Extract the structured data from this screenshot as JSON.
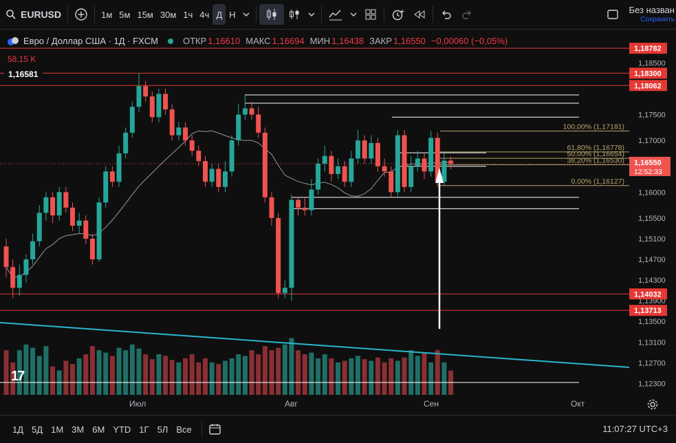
{
  "toolbar": {
    "symbol": "EURUSD",
    "intervals": [
      "1м",
      "5м",
      "15м",
      "30м",
      "1ч",
      "4ч",
      "Д",
      "Н"
    ],
    "active_interval": "Д",
    "layout_title": "Без назван",
    "layout_subtitle": "Сохранить"
  },
  "legend": {
    "title": "Евро / Доллар США · 1Д · FXCM",
    "open_label": "ОТКР",
    "open": "1,16610",
    "high_label": "МАКС",
    "high": "1,16694",
    "low_label": "МИН",
    "low": "1,16438",
    "close_label": "ЗАКР",
    "close": "1,16550",
    "change": "−0,00060 (−0,05%)",
    "volume": "58,15 K",
    "crosshair_price": "1,16581"
  },
  "colors": {
    "up": "#26a69a",
    "down": "#ef5350",
    "trend": "#29b6d0",
    "hline": "#e53935",
    "fib": "#b8a46a"
  },
  "chart_data": {
    "type": "candlestick",
    "title": "Евро / Доллар США · 1Д · FXCM",
    "x_labels": [
      "Июл",
      "Авг",
      "Сен",
      "Окт"
    ],
    "price_axis": [
      "1,18500",
      "1,17500",
      "1,17000",
      "1,16000",
      "1,15500",
      "1,15100",
      "1,14700",
      "1,14300",
      "1,13900",
      "1,13500",
      "1,13100",
      "1,12700",
      "1,12300"
    ],
    "ylim": [
      1.1208,
      1.1913
    ],
    "highlighted_levels": [
      {
        "price": 1.18782,
        "label": "1,18782"
      },
      {
        "price": 1.183,
        "label": "1,18300"
      },
      {
        "price": 1.18062,
        "label": "1,18062"
      },
      {
        "price": 1.14032,
        "label": "1,14032"
      },
      {
        "price": 1.13713,
        "label": "1,13713"
      }
    ],
    "current_price": {
      "price": 1.1655,
      "label": "1,16550",
      "countdown": "12:52:33"
    },
    "fib_levels": [
      {
        "ratio": "100,00%",
        "price": 1.17181,
        "label": "100,00% (1,17181)"
      },
      {
        "ratio": "61,80%",
        "price": 1.16778,
        "label": "61,80% (1,16778)"
      },
      {
        "ratio": "50,00%",
        "price": 1.16654,
        "label": "50,00% (1,16654)"
      },
      {
        "ratio": "38,20%",
        "price": 1.1653,
        "label": "38,20% (1,16530)"
      },
      {
        "ratio": "0,00%",
        "price": 1.16127,
        "label": "0,00% (1,16127)"
      }
    ],
    "candles": [
      [
        1.1495,
        1.1455,
        1.151,
        1.1435
      ],
      [
        1.1455,
        1.1415,
        1.147,
        1.1395
      ],
      [
        1.1415,
        1.144,
        1.146,
        1.14
      ],
      [
        1.144,
        1.147,
        1.148,
        1.1425
      ],
      [
        1.147,
        1.1505,
        1.152,
        1.146
      ],
      [
        1.1505,
        1.156,
        1.1575,
        1.1495
      ],
      [
        1.156,
        1.159,
        1.16,
        1.1545
      ],
      [
        1.159,
        1.1555,
        1.16,
        1.154
      ],
      [
        1.1555,
        1.16,
        1.161,
        1.1545
      ],
      [
        1.16,
        1.157,
        1.161,
        1.156
      ],
      [
        1.157,
        1.1535,
        1.158,
        1.1525
      ],
      [
        1.1535,
        1.1545,
        1.156,
        1.152
      ],
      [
        1.1545,
        1.151,
        1.1555,
        1.15
      ],
      [
        1.151,
        1.147,
        1.152,
        1.146
      ],
      [
        1.147,
        1.158,
        1.159,
        1.1465
      ],
      [
        1.158,
        1.164,
        1.165,
        1.157
      ],
      [
        1.164,
        1.162,
        1.165,
        1.161
      ],
      [
        1.162,
        1.1675,
        1.169,
        1.161
      ],
      [
        1.1675,
        1.1715,
        1.1725,
        1.1665
      ],
      [
        1.1715,
        1.1765,
        1.1775,
        1.1705
      ],
      [
        1.1765,
        1.1805,
        1.183,
        1.1755
      ],
      [
        1.1805,
        1.1785,
        1.1815,
        1.1775
      ],
      [
        1.1785,
        1.1745,
        1.1795,
        1.1735
      ],
      [
        1.1745,
        1.179,
        1.18,
        1.1735
      ],
      [
        1.179,
        1.176,
        1.18,
        1.175
      ],
      [
        1.176,
        1.171,
        1.177,
        1.17
      ],
      [
        1.171,
        1.1725,
        1.1735,
        1.17
      ],
      [
        1.1725,
        1.17,
        1.1735,
        1.169
      ],
      [
        1.17,
        1.168,
        1.171,
        1.167
      ],
      [
        1.168,
        1.166,
        1.169,
        1.165
      ],
      [
        1.166,
        1.162,
        1.167,
        1.161
      ],
      [
        1.162,
        1.1645,
        1.1655,
        1.161
      ],
      [
        1.1645,
        1.161,
        1.1655,
        1.16
      ],
      [
        1.161,
        1.164,
        1.166,
        1.16
      ],
      [
        1.164,
        1.17,
        1.171,
        1.163
      ],
      [
        1.17,
        1.175,
        1.177,
        1.169
      ],
      [
        1.175,
        1.1762,
        1.179,
        1.174
      ],
      [
        1.1762,
        1.175,
        1.1775,
        1.174
      ],
      [
        1.175,
        1.1715,
        1.1765,
        1.1705
      ],
      [
        1.1715,
        1.159,
        1.1725,
        1.158
      ],
      [
        1.159,
        1.155,
        1.16,
        1.1535
      ],
      [
        1.155,
        1.1405,
        1.156,
        1.1395
      ],
      [
        1.1405,
        1.1415,
        1.143,
        1.1395
      ],
      [
        1.1415,
        1.1585,
        1.1595,
        1.139
      ],
      [
        1.1585,
        1.157,
        1.159,
        1.1555
      ],
      [
        1.157,
        1.1565,
        1.159,
        1.1555
      ],
      [
        1.1565,
        1.1605,
        1.1625,
        1.1555
      ],
      [
        1.1605,
        1.1655,
        1.1665,
        1.1595
      ],
      [
        1.1655,
        1.167,
        1.169,
        1.164
      ],
      [
        1.167,
        1.1635,
        1.168,
        1.162
      ],
      [
        1.1635,
        1.165,
        1.1665,
        1.1625
      ],
      [
        1.165,
        1.162,
        1.166,
        1.161
      ],
      [
        1.162,
        1.1665,
        1.168,
        1.161
      ],
      [
        1.1665,
        1.17,
        1.172,
        1.1655
      ],
      [
        1.17,
        1.1665,
        1.171,
        1.1655
      ],
      [
        1.1665,
        1.1695,
        1.171,
        1.1655
      ],
      [
        1.1695,
        1.165,
        1.1705,
        1.164
      ],
      [
        1.165,
        1.164,
        1.1665,
        1.163
      ],
      [
        1.164,
        1.16,
        1.165,
        1.159
      ],
      [
        1.16,
        1.171,
        1.172,
        1.159
      ],
      [
        1.171,
        1.161,
        1.172,
        1.16
      ],
      [
        1.161,
        1.165,
        1.167,
        1.16
      ],
      [
        1.165,
        1.1665,
        1.168,
        1.164
      ],
      [
        1.1665,
        1.164,
        1.1675,
        1.1625
      ],
      [
        1.164,
        1.1705,
        1.1718,
        1.163
      ],
      [
        1.1705,
        1.162,
        1.1715,
        1.161
      ],
      [
        1.162,
        1.1661,
        1.1675,
        1.1613
      ],
      [
        1.1661,
        1.1655,
        1.1669,
        1.1644
      ]
    ],
    "volumes": [
      0.55,
      0.4,
      0.55,
      0.62,
      0.58,
      0.48,
      0.6,
      0.35,
      0.3,
      0.42,
      0.38,
      0.45,
      0.5,
      0.6,
      0.55,
      0.52,
      0.48,
      0.58,
      0.55,
      0.62,
      0.57,
      0.5,
      0.44,
      0.5,
      0.48,
      0.43,
      0.4,
      0.45,
      0.5,
      0.4,
      0.45,
      0.4,
      0.38,
      0.42,
      0.45,
      0.5,
      0.48,
      0.55,
      0.5,
      0.6,
      0.55,
      0.58,
      0.62,
      0.7,
      0.55,
      0.5,
      0.52,
      0.45,
      0.5,
      0.45,
      0.4,
      0.42,
      0.45,
      0.48,
      0.44,
      0.42,
      0.46,
      0.4,
      0.45,
      0.42,
      0.46,
      0.55,
      0.48,
      0.52,
      0.4,
      0.55,
      0.4,
      0.3
    ]
  },
  "bottom": {
    "ranges": [
      "1Д",
      "5Д",
      "1М",
      "3М",
      "6М",
      "YTD",
      "1Г",
      "5Л",
      "Все"
    ],
    "clock": "11:07:27 UTC+3"
  }
}
